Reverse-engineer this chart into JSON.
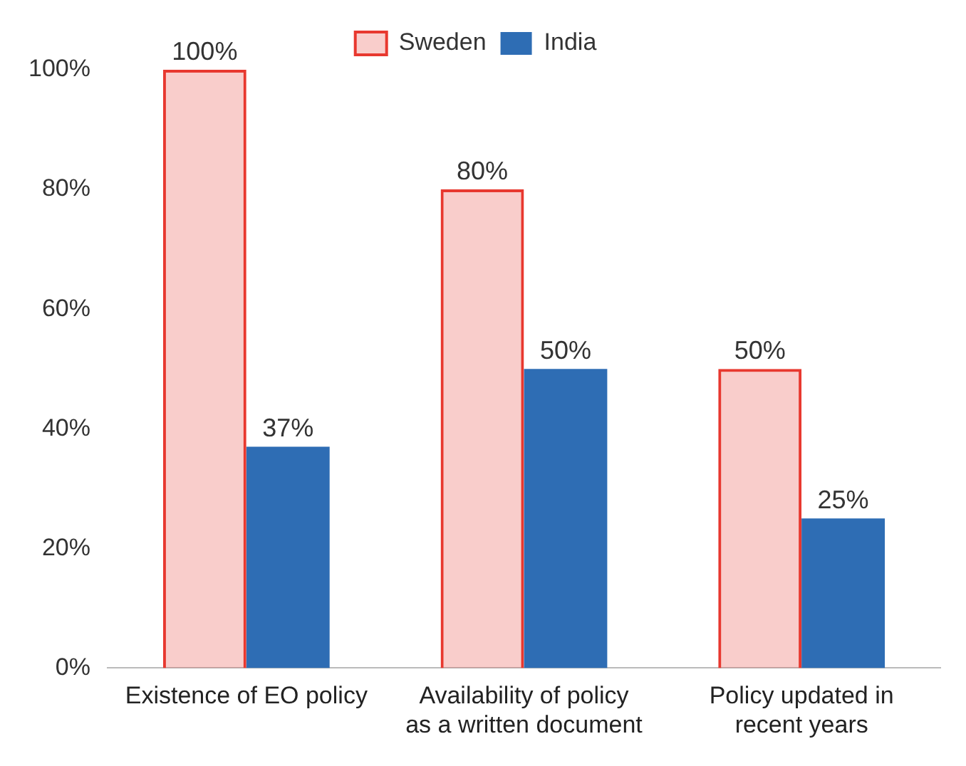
{
  "chart_data": {
    "type": "bar",
    "categories": [
      "Existence of EO policy",
      "Availability of policy as a written document",
      "Policy updated in recent years"
    ],
    "series": [
      {
        "name": "Sweden",
        "color": "#e8382f",
        "values": [
          100,
          80,
          50
        ],
        "value_labels": [
          "100%",
          "80%",
          "50%"
        ]
      },
      {
        "name": "India",
        "color": "#2e6db4",
        "values": [
          37,
          50,
          25
        ],
        "value_labels": [
          "37%",
          "50%",
          "25%"
        ]
      }
    ],
    "ylim": [
      0,
      100
    ],
    "yticks": [
      {
        "value": 0,
        "label": "0%"
      },
      {
        "value": 20,
        "label": "20%"
      },
      {
        "value": 40,
        "label": "40%"
      },
      {
        "value": 60,
        "label": "60%"
      },
      {
        "value": 80,
        "label": "80%"
      },
      {
        "value": 100,
        "label": "100%"
      }
    ],
    "grid": false,
    "legend": "top"
  }
}
